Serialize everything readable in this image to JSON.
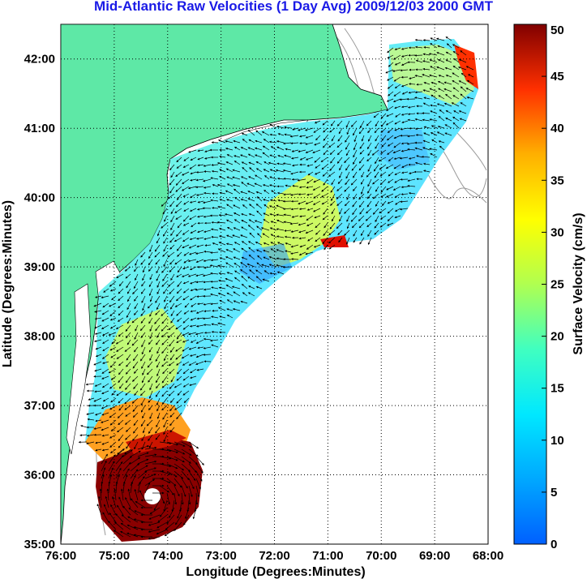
{
  "title": "Mid-Atlantic Raw Velocities (1 Day Avg) 2009/12/03 2000 GMT",
  "map": {
    "xlabel": "Longitude (Degrees:Minutes)",
    "ylabel": "Latitude (Degrees:Minutes)",
    "lon_range": [
      -76,
      -68
    ],
    "lat_range": [
      35,
      42.5
    ],
    "lon_ticks": [
      "76:00",
      "75:00",
      "74:00",
      "73:00",
      "72:00",
      "71:00",
      "70:00",
      "69:00",
      "68:00"
    ],
    "lat_ticks": [
      "42:00",
      "41:00",
      "40:00",
      "39:00",
      "38:00",
      "37:00",
      "36:00",
      "35:00"
    ],
    "grid": "dotted",
    "land_color": "#5ee8a6",
    "water_color": "#ffffff",
    "bathymetry_color": "#9a9a9a"
  },
  "colorbar": {
    "label": "Surface Velocity (cm/s)",
    "min": 0,
    "max": 50,
    "ticks": [
      "50",
      "45",
      "40",
      "35",
      "30",
      "25",
      "20",
      "15",
      "10",
      "5",
      "0"
    ],
    "colormap": "jet"
  }
}
